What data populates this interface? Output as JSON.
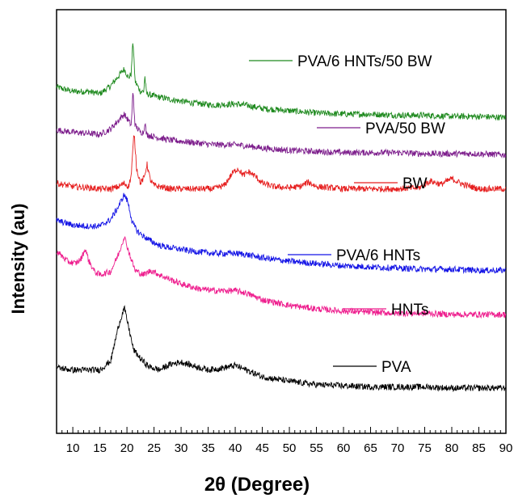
{
  "chart_data": {
    "type": "line",
    "xlabel": "2θ (Degree)",
    "ylabel": "Intensity (au)",
    "xlim": [
      7,
      90
    ],
    "x_ticks": [
      10,
      15,
      20,
      25,
      30,
      35,
      40,
      45,
      50,
      55,
      60,
      65,
      70,
      75,
      80,
      85,
      90
    ],
    "y_ticks": "none",
    "grid": false,
    "legend": "inline labels beside each trace",
    "series": [
      {
        "name": "PVA/6 HNTs/50 BW",
        "color": "#1f8a1f",
        "points": [
          [
            7,
            0.9
          ],
          [
            10,
            0.86
          ],
          [
            13,
            0.86
          ],
          [
            15,
            0.84
          ],
          [
            17,
            0.91
          ],
          [
            18.5,
            1.0
          ],
          [
            19.5,
            1.06
          ],
          [
            20.3,
            0.98
          ],
          [
            20.8,
            1.02
          ],
          [
            21.1,
            1.32
          ],
          [
            21.5,
            0.95
          ],
          [
            22.5,
            0.86
          ],
          [
            23.1,
            0.86
          ],
          [
            23.3,
            1.0
          ],
          [
            23.6,
            0.84
          ],
          [
            25,
            0.82
          ],
          [
            28,
            0.79
          ],
          [
            32,
            0.76
          ],
          [
            36,
            0.74
          ],
          [
            40,
            0.75
          ],
          [
            42,
            0.74
          ],
          [
            45,
            0.71
          ],
          [
            50,
            0.69
          ],
          [
            55,
            0.67
          ],
          [
            60,
            0.66
          ],
          [
            65,
            0.66
          ],
          [
            70,
            0.65
          ],
          [
            75,
            0.65
          ],
          [
            80,
            0.64
          ],
          [
            85,
            0.64
          ],
          [
            90,
            0.63
          ]
        ]
      },
      {
        "name": "PVA/50 BW",
        "color": "#7d1e8c",
        "points": [
          [
            7,
            0.52
          ],
          [
            10,
            0.5
          ],
          [
            13,
            0.49
          ],
          [
            15,
            0.48
          ],
          [
            17,
            0.53
          ],
          [
            18.5,
            0.61
          ],
          [
            19.5,
            0.66
          ],
          [
            20.3,
            0.6
          ],
          [
            20.8,
            0.56
          ],
          [
            21.1,
            0.86
          ],
          [
            21.5,
            0.56
          ],
          [
            22.5,
            0.5
          ],
          [
            23.1,
            0.5
          ],
          [
            23.3,
            0.6
          ],
          [
            23.6,
            0.48
          ],
          [
            25,
            0.46
          ],
          [
            28,
            0.43
          ],
          [
            32,
            0.41
          ],
          [
            36,
            0.39
          ],
          [
            40,
            0.39
          ],
          [
            42,
            0.38
          ],
          [
            45,
            0.36
          ],
          [
            50,
            0.34
          ],
          [
            55,
            0.33
          ],
          [
            60,
            0.32
          ],
          [
            65,
            0.32
          ],
          [
            70,
            0.32
          ],
          [
            75,
            0.31
          ],
          [
            80,
            0.31
          ],
          [
            85,
            0.31
          ],
          [
            90,
            0.3
          ]
        ]
      },
      {
        "name": "BW",
        "color": "#e61e1e",
        "points": [
          [
            7,
            0.05
          ],
          [
            10,
            0.02
          ],
          [
            13,
            0.01
          ],
          [
            15,
            0.0
          ],
          [
            17,
            0.0
          ],
          [
            18.5,
            0.02
          ],
          [
            19.5,
            0.05
          ],
          [
            20.3,
            0.02
          ],
          [
            20.8,
            0.12
          ],
          [
            21.3,
            0.5
          ],
          [
            21.8,
            0.18
          ],
          [
            22.5,
            0.05
          ],
          [
            23.2,
            0.1
          ],
          [
            23.7,
            0.22
          ],
          [
            24.3,
            0.08
          ],
          [
            25,
            0.03
          ],
          [
            28,
            0.0
          ],
          [
            32,
            0.0
          ],
          [
            36,
            0.0
          ],
          [
            38,
            0.03
          ],
          [
            39.5,
            0.14
          ],
          [
            40.5,
            0.18
          ],
          [
            41.5,
            0.12
          ],
          [
            42.5,
            0.15
          ],
          [
            43.5,
            0.12
          ],
          [
            45,
            0.05
          ],
          [
            47,
            0.02
          ],
          [
            50,
            0.01
          ],
          [
            52,
            0.02
          ],
          [
            53.5,
            0.06
          ],
          [
            55,
            0.02
          ],
          [
            60,
            0.0
          ],
          [
            65,
            0.0
          ],
          [
            70,
            0.0
          ],
          [
            74,
            0.01
          ],
          [
            76,
            0.07
          ],
          [
            78,
            0.04
          ],
          [
            80,
            0.09
          ],
          [
            82,
            0.04
          ],
          [
            85,
            0.0
          ],
          [
            90,
            0.0
          ]
        ]
      },
      {
        "name": "PVA/6 HNTs",
        "color": "#1414e6",
        "points": [
          [
            7,
            -0.28
          ],
          [
            10,
            -0.32
          ],
          [
            13,
            -0.33
          ],
          [
            15,
            -0.33
          ],
          [
            17,
            -0.27
          ],
          [
            18.5,
            -0.15
          ],
          [
            19.5,
            -0.05
          ],
          [
            20.2,
            -0.12
          ],
          [
            21,
            -0.3
          ],
          [
            22,
            -0.38
          ],
          [
            24,
            -0.45
          ],
          [
            26,
            -0.5
          ],
          [
            28,
            -0.52
          ],
          [
            32,
            -0.55
          ],
          [
            36,
            -0.57
          ],
          [
            40,
            -0.57
          ],
          [
            42,
            -0.58
          ],
          [
            45,
            -0.61
          ],
          [
            50,
            -0.64
          ],
          [
            55,
            -0.66
          ],
          [
            60,
            -0.68
          ],
          [
            65,
            -0.69
          ],
          [
            70,
            -0.7
          ],
          [
            75,
            -0.71
          ],
          [
            80,
            -0.71
          ],
          [
            85,
            -0.72
          ],
          [
            90,
            -0.72
          ]
        ]
      },
      {
        "name": "HNTs",
        "color": "#ee1e8e",
        "points": [
          [
            7,
            -0.55
          ],
          [
            9,
            -0.64
          ],
          [
            10.5,
            -0.66
          ],
          [
            11.5,
            -0.62
          ],
          [
            12.3,
            -0.53
          ],
          [
            13,
            -0.64
          ],
          [
            14,
            -0.73
          ],
          [
            15,
            -0.76
          ],
          [
            17,
            -0.73
          ],
          [
            18.5,
            -0.57
          ],
          [
            19.5,
            -0.42
          ],
          [
            20.5,
            -0.58
          ],
          [
            21.5,
            -0.72
          ],
          [
            23,
            -0.76
          ],
          [
            24.5,
            -0.72
          ],
          [
            26,
            -0.76
          ],
          [
            28,
            -0.8
          ],
          [
            30,
            -0.84
          ],
          [
            33,
            -0.88
          ],
          [
            36,
            -0.9
          ],
          [
            40,
            -0.9
          ],
          [
            42,
            -0.92
          ],
          [
            45,
            -0.98
          ],
          [
            50,
            -1.03
          ],
          [
            55,
            -1.06
          ],
          [
            60,
            -1.08
          ],
          [
            65,
            -1.09
          ],
          [
            70,
            -1.1
          ],
          [
            75,
            -1.1
          ],
          [
            80,
            -1.11
          ],
          [
            85,
            -1.11
          ],
          [
            90,
            -1.11
          ]
        ]
      },
      {
        "name": "PVA",
        "color": "#000000",
        "points": [
          [
            7,
            -1.58
          ],
          [
            10,
            -1.6
          ],
          [
            13,
            -1.6
          ],
          [
            15,
            -1.6
          ],
          [
            17,
            -1.52
          ],
          [
            18.5,
            -1.2
          ],
          [
            19.5,
            -1.05
          ],
          [
            20.3,
            -1.22
          ],
          [
            21.2,
            -1.42
          ],
          [
            22.5,
            -1.5
          ],
          [
            24,
            -1.57
          ],
          [
            26,
            -1.6
          ],
          [
            28,
            -1.55
          ],
          [
            30,
            -1.53
          ],
          [
            32,
            -1.56
          ],
          [
            35,
            -1.6
          ],
          [
            38,
            -1.58
          ],
          [
            40,
            -1.56
          ],
          [
            42,
            -1.6
          ],
          [
            45,
            -1.66
          ],
          [
            50,
            -1.7
          ],
          [
            55,
            -1.73
          ],
          [
            60,
            -1.74
          ],
          [
            65,
            -1.75
          ],
          [
            70,
            -1.75
          ],
          [
            75,
            -1.75
          ],
          [
            80,
            -1.76
          ],
          [
            85,
            -1.76
          ],
          [
            90,
            -1.76
          ]
        ]
      }
    ]
  }
}
